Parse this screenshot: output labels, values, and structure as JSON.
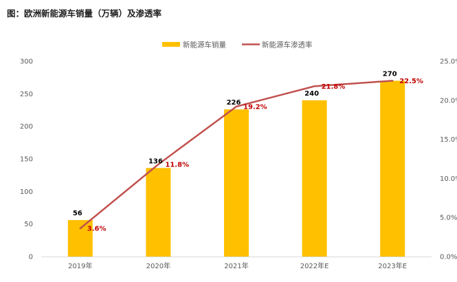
{
  "title": "图：欧洲新能源车销量（万辆）及渗透率",
  "chart_data": {
    "type": "bar",
    "categories": [
      "2019年",
      "2020年",
      "2021年",
      "2022年E",
      "2023年E"
    ],
    "series": [
      {
        "name": "新能源车销量",
        "type": "bar",
        "axis": "left",
        "color": "#FFC000",
        "values": [
          56,
          136,
          226,
          240,
          270
        ],
        "labels": [
          "56",
          "136",
          "226",
          "240",
          "270"
        ]
      },
      {
        "name": "新能源车渗透率",
        "type": "line",
        "axis": "right",
        "color": "#C0504D",
        "values": [
          3.6,
          11.8,
          19.2,
          21.8,
          22.5
        ],
        "labels": [
          "3.6%",
          "11.8%",
          "19.2%",
          "21.8%",
          "22.5%"
        ]
      }
    ],
    "y_left": {
      "min": 0,
      "max": 300,
      "ticks": [
        "0",
        "50",
        "100",
        "150",
        "200",
        "250",
        "300"
      ]
    },
    "y_right": {
      "min": 0,
      "max": 25,
      "ticks": [
        "0.0%",
        "5.0%",
        "10.0%",
        "15.0%",
        "20.0%",
        "25.0%"
      ]
    },
    "legend_position": "top-center",
    "grid": false
  }
}
